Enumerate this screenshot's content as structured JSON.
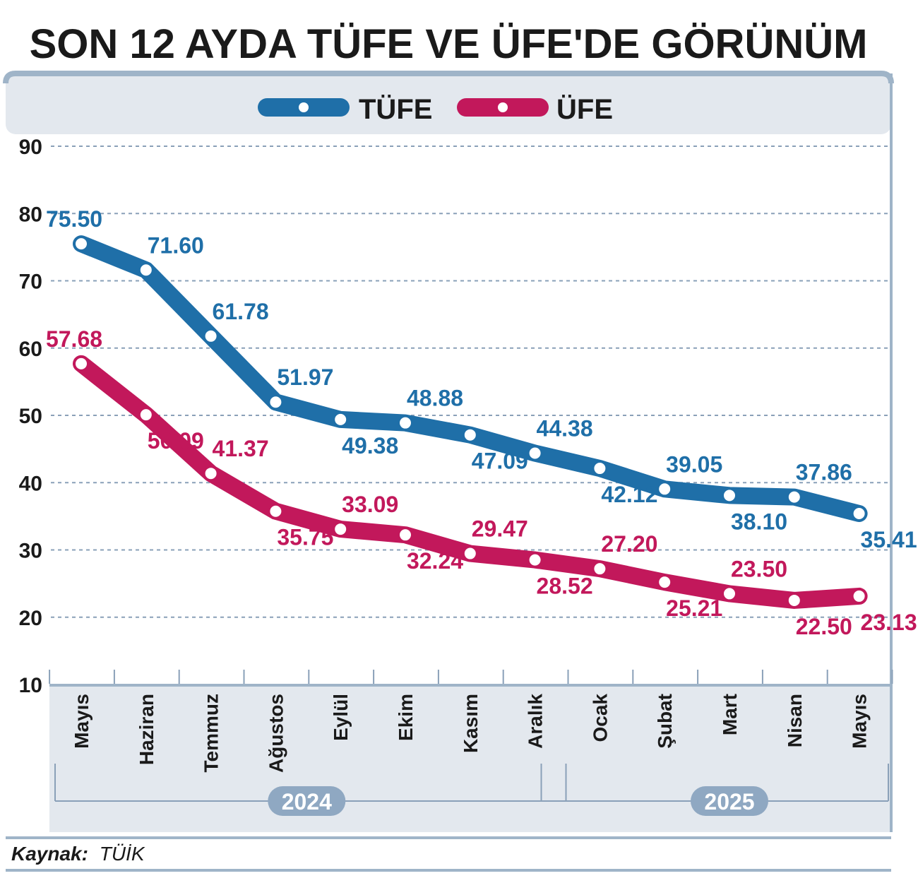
{
  "chart_data": {
    "type": "line",
    "title": "SON 12 AYDA TÜFE VE ÜFE'DE GÖRÜNÜM",
    "categories": [
      "Mayıs",
      "Haziran",
      "Temmuz",
      "Ağustos",
      "Eylül",
      "Ekim",
      "Kasım",
      "Aralık",
      "Ocak",
      "Şubat",
      "Mart",
      "Nisan",
      "Mayıs"
    ],
    "year_groups": [
      {
        "label": "2024",
        "start": 0,
        "end": 7
      },
      {
        "label": "2025",
        "start": 8,
        "end": 12
      }
    ],
    "series": [
      {
        "name": "TÜFE",
        "color": "#1f6fa8",
        "values": [
          75.5,
          71.6,
          61.78,
          51.97,
          49.38,
          48.88,
          47.09,
          44.38,
          42.12,
          39.05,
          38.1,
          37.86,
          35.41
        ],
        "labels": [
          "75.50",
          "71.60",
          "61.78",
          "51.97",
          "49.38",
          "48.88",
          "47.09",
          "44.38",
          "42.12",
          "39.05",
          "38.10",
          "37.86",
          "35.41"
        ],
        "label_pos": [
          "above",
          "above",
          "above",
          "above",
          "below",
          "above",
          "below",
          "above",
          "below",
          "above",
          "below",
          "above",
          "below"
        ]
      },
      {
        "name": "ÜFE",
        "color": "#c2185b",
        "values": [
          57.68,
          50.09,
          41.37,
          35.75,
          33.09,
          32.24,
          29.47,
          28.52,
          27.2,
          25.21,
          23.5,
          22.5,
          23.13
        ],
        "labels": [
          "57.68",
          "50.09",
          "41.37",
          "35.75",
          "33.09",
          "32.24",
          "29.47",
          "28.52",
          "27.20",
          "25.21",
          "23.50",
          "22.50",
          "23.13"
        ],
        "label_pos": [
          "above",
          "below",
          "above",
          "below",
          "above",
          "below",
          "above",
          "below",
          "above",
          "below",
          "above",
          "below",
          "below"
        ]
      }
    ],
    "y_ticks": [
      10,
      20,
      30,
      40,
      50,
      60,
      70,
      80,
      90
    ],
    "ylim": [
      10,
      90
    ],
    "grid": true,
    "legend_position": "top-center"
  },
  "footer": {
    "source_label": "Kaynak:",
    "source_value": "TÜİK"
  },
  "colors": {
    "panel": "#e3e8ee",
    "panel_border": "#9fb4c8",
    "year_pill": "#8fa8c2",
    "grid": "#8aa0b8"
  }
}
